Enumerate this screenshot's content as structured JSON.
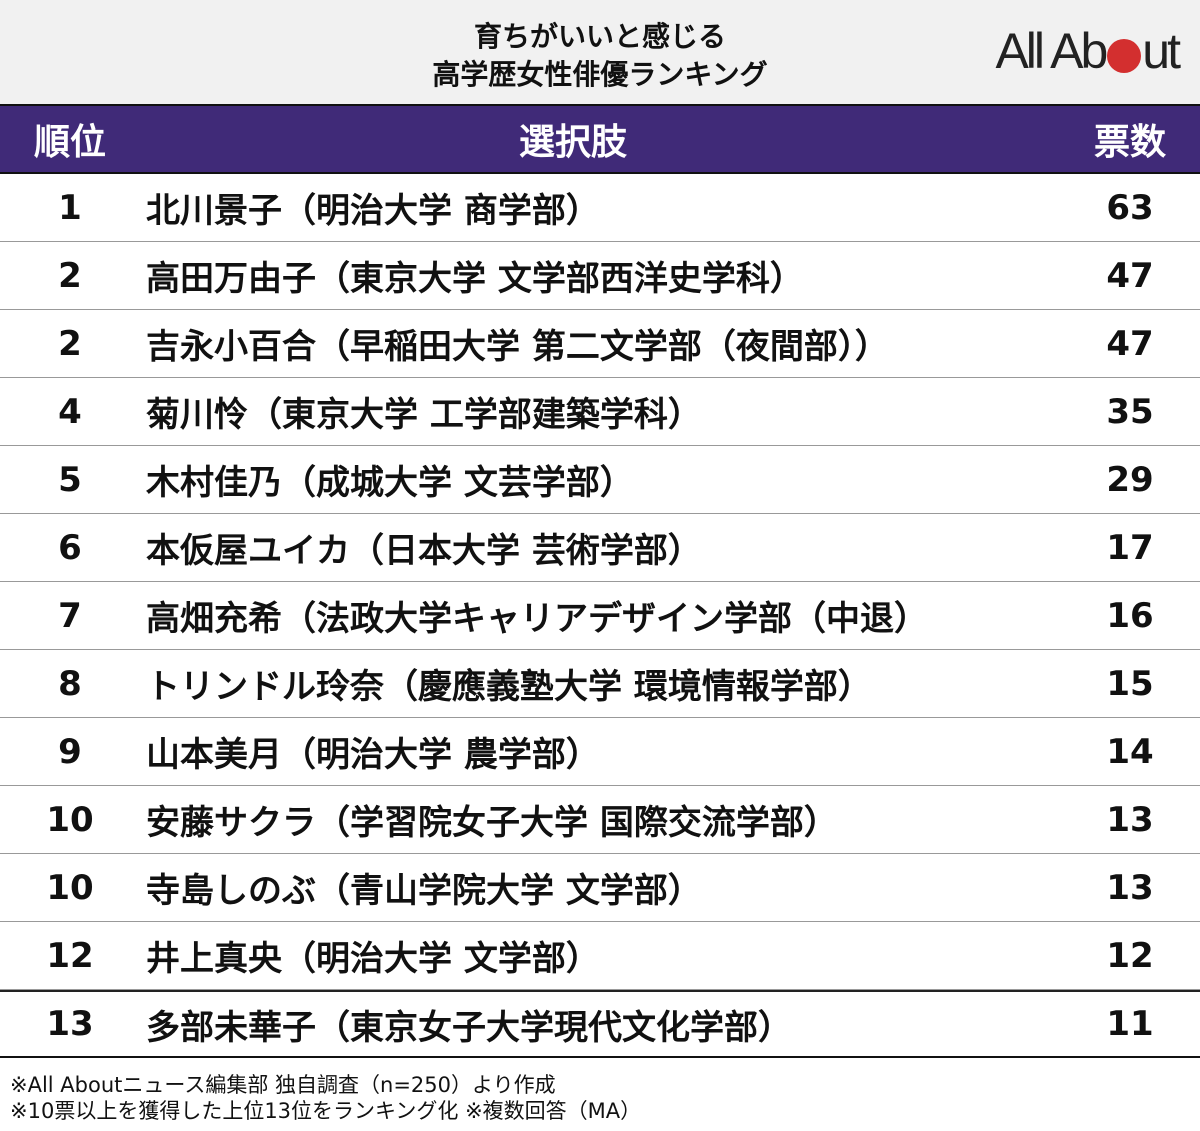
{
  "title": {
    "line1": "育ちがいいと感じる",
    "line2": "高学歴女性俳優ランキング"
  },
  "logo": {
    "text_left": "All Ab",
    "text_right": "ut",
    "accent": "#d32f2f"
  },
  "header": {
    "rank": "順位",
    "choice": "選択肢",
    "votes": "票数",
    "bg": "#402a78"
  },
  "rows": [
    {
      "rank": "1",
      "name": "北川景子（明治大学 商学部）",
      "votes": "63"
    },
    {
      "rank": "2",
      "name": "高田万由子（東京大学 文学部西洋史学科）",
      "votes": "47"
    },
    {
      "rank": "2",
      "name": "吉永小百合（早稲田大学 第二文学部（夜間部））",
      "votes": "47"
    },
    {
      "rank": "4",
      "name": "菊川怜（東京大学 工学部建築学科）",
      "votes": "35"
    },
    {
      "rank": "5",
      "name": "木村佳乃（成城大学 文芸学部）",
      "votes": "29"
    },
    {
      "rank": "6",
      "name": "本仮屋ユイカ（日本大学 芸術学部）",
      "votes": "17"
    },
    {
      "rank": "7",
      "name": "高畑充希（法政大学キャリアデザイン学部（中退）",
      "votes": "16"
    },
    {
      "rank": "8",
      "name": "トリンドル玲奈（慶應義塾大学 環境情報学部）",
      "votes": "15"
    },
    {
      "rank": "9",
      "name": "山本美月（明治大学 農学部）",
      "votes": "14"
    },
    {
      "rank": "10",
      "name": "安藤サクラ（学習院女子大学 国際交流学部）",
      "votes": "13"
    },
    {
      "rank": "10",
      "name": "寺島しのぶ（青山学院大学 文学部）",
      "votes": "13"
    },
    {
      "rank": "12",
      "name": "井上真央（明治大学 文学部）",
      "votes": "12"
    },
    {
      "rank": "13",
      "name": "多部未華子（東京女子大学現代文化学部）",
      "votes": "11"
    }
  ],
  "footnotes": [
    "※All Aboutニュース編集部 独自調査（n=250）より作成",
    "※10票以上を獲得した上位13位をランキング化 ※複数回答（MA）"
  ]
}
